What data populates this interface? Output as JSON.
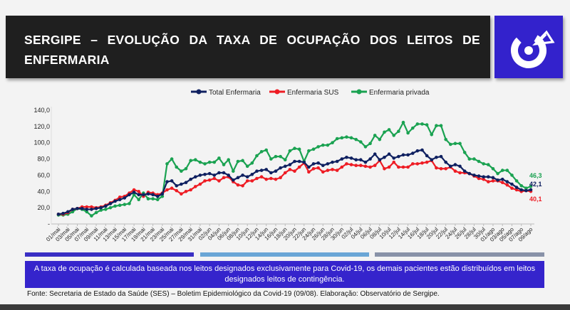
{
  "header": {
    "title": "SERGIPE – EVOLUÇÃO DA TAXA DE OCUPAÇÃO DOS LEITOS DE ENFERMARIA"
  },
  "note": "A taxa de ocupação é calculada baseada nos leitos designados exclusivamente para Covid-19, os demais pacientes estão distribuídos em leitos designados leitos de contingência.",
  "source": "Fonte: Secretaria de Estado da Saúde (SES) – Boletim Epidemiológico da Covid-19 (09/08). Elaboração: Observatório de Sergipe.",
  "colors": {
    "total": "#0f2060",
    "sus": "#ee1c24",
    "privada": "#1aa251",
    "logo_bg": "#3322cc"
  },
  "chart_data": {
    "type": "line",
    "ylim": [
      0,
      140
    ],
    "y_ticks": [
      "-",
      "20,0",
      "40,0",
      "60,0",
      "80,0",
      "100,0",
      "120,0",
      "140,0"
    ],
    "x_labels": [
      "01/mai",
      "03/mai",
      "05/mai",
      "07/mai",
      "09/mai",
      "11/mai",
      "13/mai",
      "15/mai",
      "17/mai",
      "19/mai",
      "21/mai",
      "23/mai",
      "25/mai",
      "27/mai",
      "29/mai",
      "31/mai",
      "02/jun",
      "04/jun",
      "06/jun",
      "08/jun",
      "10/jun",
      "12/jun",
      "14/jun",
      "16/jun",
      "18/jun",
      "20/jun",
      "22/jun",
      "24/jun",
      "26/jun",
      "28/jun",
      "30/jun",
      "02/jul",
      "04/jul",
      "06/jul",
      "08/jul",
      "10/jul",
      "12/jul",
      "14/jul",
      "16/jul",
      "18/jul",
      "20/jul",
      "22/jul",
      "24/jul",
      "26/jul",
      "28/jul",
      "30/jul",
      "01/ago",
      "03/ago",
      "05/ago",
      "07/ago",
      "09/ago"
    ],
    "series": [
      {
        "name": "Total Enfermaria",
        "color": "#0f2060",
        "last_label": "42,1",
        "values": [
          12,
          13,
          15,
          18,
          19,
          19,
          18,
          18,
          19,
          20,
          22,
          25,
          28,
          30,
          32,
          36,
          39,
          36,
          36,
          37,
          36,
          34,
          37,
          52,
          53,
          47,
          49,
          51,
          55,
          58,
          60,
          61,
          62,
          60,
          63,
          63,
          60,
          54,
          57,
          60,
          58,
          61,
          65,
          66,
          67,
          63,
          65,
          69,
          71,
          73,
          77,
          77,
          76,
          70,
          74,
          75,
          72,
          74,
          76,
          77,
          80,
          82,
          81,
          79,
          79,
          76,
          80,
          86,
          79,
          82,
          86,
          81,
          83,
          85,
          85,
          87,
          90,
          91,
          84,
          79,
          82,
          83,
          76,
          71,
          73,
          71,
          65,
          62,
          60,
          59,
          58,
          58,
          57,
          54,
          55,
          52,
          49,
          45,
          42,
          41,
          42.1
        ]
      },
      {
        "name": "Enfermaria SUS",
        "color": "#ee1c24",
        "last_label": "40,1",
        "values": [
          12,
          12,
          14,
          18,
          19,
          21,
          21,
          21,
          20,
          21,
          23,
          26,
          29,
          33,
          34,
          38,
          42,
          40,
          34,
          39,
          38,
          36,
          38,
          42,
          44,
          41,
          37,
          40,
          42,
          46,
          49,
          53,
          54,
          56,
          53,
          57,
          58,
          52,
          48,
          47,
          53,
          53,
          56,
          58,
          55,
          56,
          55,
          57,
          63,
          67,
          65,
          70,
          75,
          64,
          68,
          69,
          64,
          66,
          67,
          66,
          70,
          74,
          73,
          72,
          72,
          71,
          70,
          72,
          78,
          68,
          70,
          76,
          70,
          70,
          70,
          74,
          74,
          75,
          76,
          78,
          69,
          68,
          68,
          70,
          65,
          63,
          63,
          62,
          59,
          56,
          55,
          52,
          53,
          53,
          51,
          48,
          44,
          42,
          40,
          41,
          40.1
        ]
      },
      {
        "name": "Enfermaria privada",
        "color": "#1aa251",
        "last_label": "46,3",
        "values": [
          11,
          11,
          12,
          15,
          19,
          18,
          15,
          10,
          14,
          17,
          18,
          20,
          22,
          23,
          24,
          25,
          36,
          30,
          38,
          31,
          31,
          30,
          34,
          74,
          80,
          70,
          65,
          68,
          78,
          79,
          76,
          74,
          76,
          76,
          81,
          73,
          79,
          65,
          77,
          78,
          71,
          75,
          84,
          89,
          91,
          80,
          83,
          83,
          79,
          90,
          93,
          92,
          77,
          90,
          92,
          95,
          97,
          97,
          100,
          105,
          106,
          107,
          106,
          104,
          101,
          95,
          99,
          109,
          104,
          113,
          116,
          109,
          114,
          125,
          112,
          118,
          123,
          123,
          122,
          110,
          121,
          121,
          104,
          98,
          99,
          99,
          88,
          80,
          80,
          77,
          74,
          73,
          68,
          62,
          66,
          66,
          60,
          53,
          47,
          44,
          46.3
        ]
      }
    ]
  }
}
